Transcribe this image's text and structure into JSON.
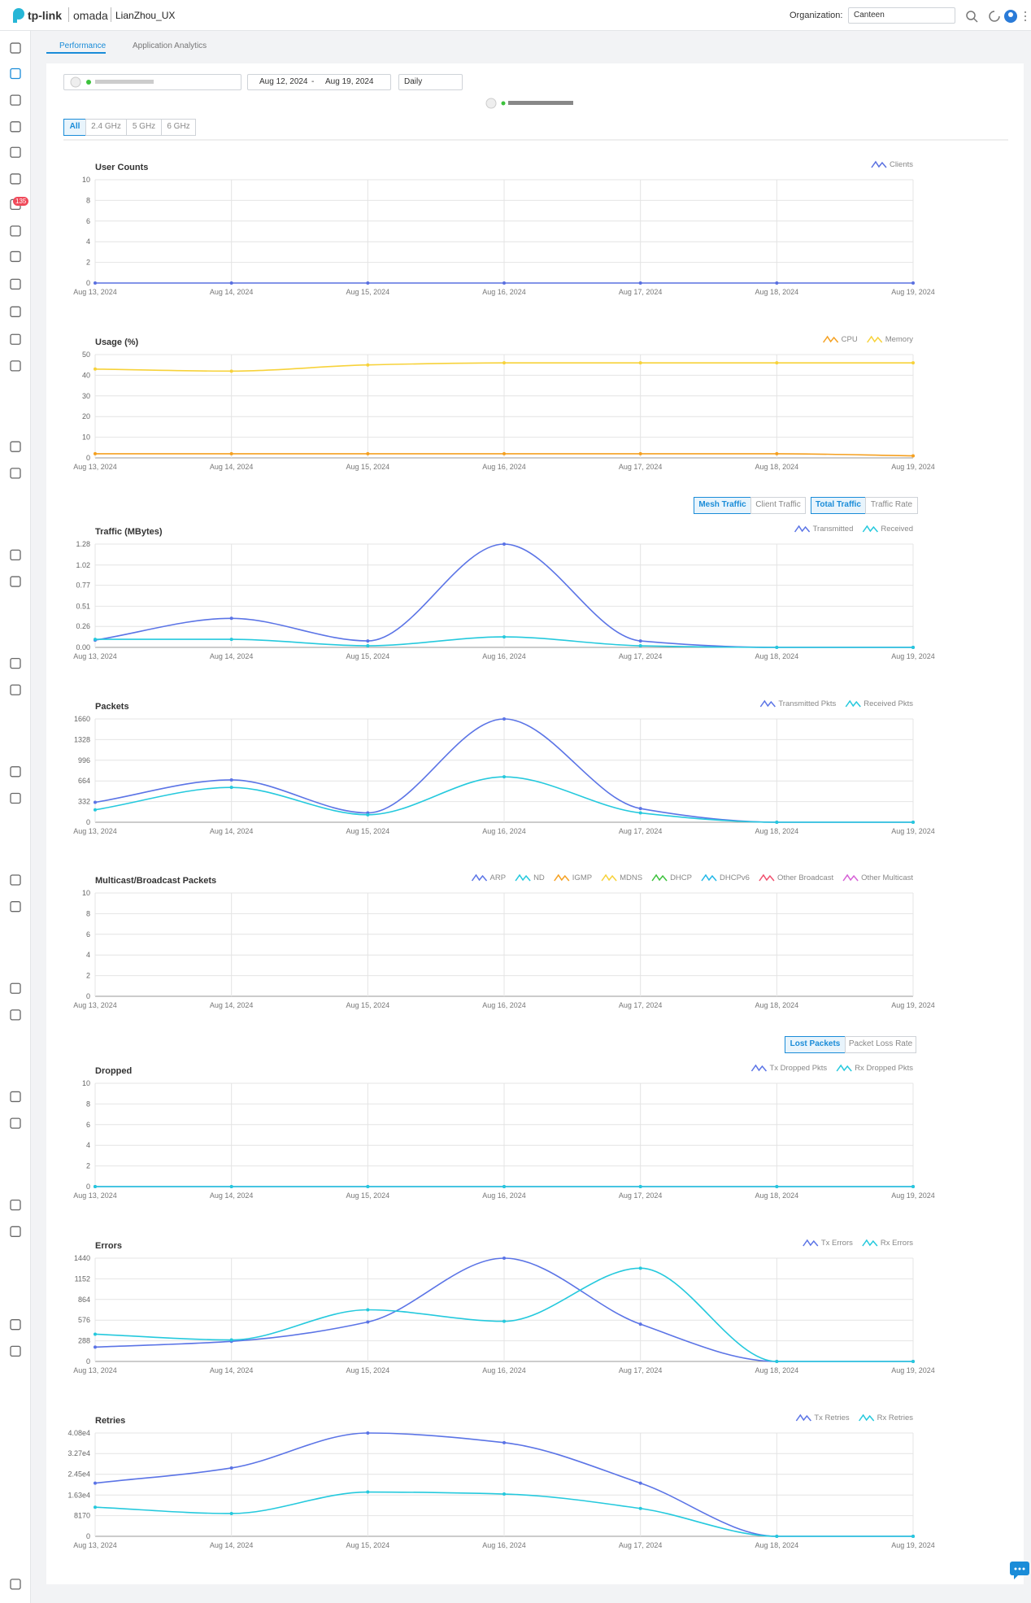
{
  "header": {
    "logo": "tp-link",
    "product": "omada",
    "site": "LianZhou_UX",
    "org_label": "Organization:",
    "org": "Canteen",
    "badge": "135"
  },
  "tabs": [
    "Performance",
    "Application Analytics"
  ],
  "filters": {
    "start": "Aug 12, 2024",
    "dash": "-",
    "end": "Aug 19, 2024",
    "interval": "Daily"
  },
  "bands": [
    "All",
    "2.4 GHz",
    "5 GHz",
    "6 GHz"
  ],
  "traffic_toggles": [
    "Mesh Traffic",
    "Client Traffic",
    "Total Traffic",
    "Traffic Rate"
  ],
  "loss_toggles": [
    "Lost Packets",
    "Packet Loss Rate"
  ],
  "chart_data": [
    {
      "type": "line",
      "title": "User Counts",
      "categories": [
        "Aug 13, 2024",
        "Aug 14, 2024",
        "Aug 15, 2024",
        "Aug 16, 2024",
        "Aug 17, 2024",
        "Aug 18, 2024",
        "Aug 19, 2024"
      ],
      "series": [
        {
          "name": "Clients",
          "color": "#5a70e0",
          "values": [
            0,
            0,
            0,
            0,
            0,
            0,
            0
          ]
        }
      ],
      "ylim": [
        0,
        10
      ],
      "yticks": [
        0,
        2,
        4,
        6,
        8,
        10
      ],
      "grid": true
    },
    {
      "type": "line",
      "title": "Usage (%)",
      "categories": [
        "Aug 13, 2024",
        "Aug 14, 2024",
        "Aug 15, 2024",
        "Aug 16, 2024",
        "Aug 17, 2024",
        "Aug 18, 2024",
        "Aug 19, 2024"
      ],
      "series": [
        {
          "name": "CPU",
          "color": "#f5a020",
          "values": [
            2,
            2,
            2,
            2,
            2,
            2,
            1
          ]
        },
        {
          "name": "Memory",
          "color": "#f7d23a",
          "values": [
            43,
            42,
            45,
            46,
            46,
            46,
            46
          ]
        }
      ],
      "ylim": [
        0,
        50
      ],
      "yticks": [
        0,
        10,
        20,
        30,
        40,
        50
      ],
      "grid": true
    },
    {
      "type": "line",
      "title": "Traffic (MBytes)",
      "categories": [
        "Aug 13, 2024",
        "Aug 14, 2024",
        "Aug 15, 2024",
        "Aug 16, 2024",
        "Aug 17, 2024",
        "Aug 18, 2024",
        "Aug 19, 2024"
      ],
      "series": [
        {
          "name": "Transmitted",
          "color": "#5b74e6",
          "values": [
            0.09,
            0.36,
            0.08,
            1.28,
            0.08,
            0,
            0
          ]
        },
        {
          "name": "Received",
          "color": "#25c9dd",
          "values": [
            0.1,
            0.1,
            0.02,
            0.13,
            0.02,
            0,
            0
          ]
        }
      ],
      "ylim": [
        0,
        1.28
      ],
      "yticks": [
        {
          "value": 0,
          "label": "0.00"
        },
        0.26,
        0.51,
        0.77,
        1.02,
        1.28
      ],
      "grid": true
    },
    {
      "type": "line",
      "title": "Packets",
      "categories": [
        "Aug 13, 2024",
        "Aug 14, 2024",
        "Aug 15, 2024",
        "Aug 16, 2024",
        "Aug 17, 2024",
        "Aug 18, 2024",
        "Aug 19, 2024"
      ],
      "series": [
        {
          "name": "Transmitted Pkts",
          "color": "#5b74e6",
          "values": [
            320,
            680,
            150,
            1660,
            220,
            0,
            0
          ]
        },
        {
          "name": "Received Pkts",
          "color": "#25c9dd",
          "values": [
            200,
            560,
            120,
            730,
            150,
            0,
            0
          ]
        }
      ],
      "ylim": [
        0,
        1660
      ],
      "yticks": [
        0,
        332,
        664,
        996,
        1328,
        1660
      ],
      "grid": true
    },
    {
      "type": "line",
      "title": "Multicast/Broadcast Packets",
      "categories": [
        "Aug 13, 2024",
        "Aug 14, 2024",
        "Aug 15, 2024",
        "Aug 16, 2024",
        "Aug 17, 2024",
        "Aug 18, 2024",
        "Aug 19, 2024"
      ],
      "series": [
        {
          "name": "ARP",
          "color": "#5b74e6",
          "values": [
            null,
            null,
            null,
            null,
            null,
            null,
            null
          ]
        },
        {
          "name": "ND",
          "color": "#25c9dd",
          "values": [
            null,
            null,
            null,
            null,
            null,
            null,
            null
          ]
        },
        {
          "name": "IGMP",
          "color": "#f5a020",
          "values": [
            null,
            null,
            null,
            null,
            null,
            null,
            null
          ]
        },
        {
          "name": "MDNS",
          "color": "#f7d23a",
          "values": [
            null,
            null,
            null,
            null,
            null,
            null,
            null
          ]
        },
        {
          "name": "DHCP",
          "color": "#3cc23c",
          "values": [
            null,
            null,
            null,
            null,
            null,
            null,
            null
          ]
        },
        {
          "name": "DHCPv6",
          "color": "#22b8e8",
          "values": [
            null,
            null,
            null,
            null,
            null,
            null,
            null
          ]
        },
        {
          "name": "Other Broadcast",
          "color": "#f0506e",
          "values": [
            null,
            null,
            null,
            null,
            null,
            null,
            null
          ]
        },
        {
          "name": "Other Multicast",
          "color": "#d660d6",
          "values": [
            null,
            null,
            null,
            null,
            null,
            null,
            null
          ]
        }
      ],
      "ylim": [
        0,
        10
      ],
      "yticks": [
        0,
        2,
        4,
        6,
        8,
        10
      ],
      "grid": true
    },
    {
      "type": "line",
      "title": "Dropped",
      "categories": [
        "Aug 13, 2024",
        "Aug 14, 2024",
        "Aug 15, 2024",
        "Aug 16, 2024",
        "Aug 17, 2024",
        "Aug 18, 2024",
        "Aug 19, 2024"
      ],
      "series": [
        {
          "name": "Tx Dropped Pkts",
          "color": "#5b74e6",
          "values": [
            0,
            0,
            0,
            0,
            0,
            0,
            0
          ]
        },
        {
          "name": "Rx Dropped Pkts",
          "color": "#25c9dd",
          "values": [
            0,
            0,
            0,
            0,
            0,
            0,
            0
          ]
        }
      ],
      "ylim": [
        0,
        10
      ],
      "yticks": [
        0,
        2,
        4,
        6,
        8,
        10
      ],
      "grid": true
    },
    {
      "type": "line",
      "title": "Errors",
      "categories": [
        "Aug 13, 2024",
        "Aug 14, 2024",
        "Aug 15, 2024",
        "Aug 16, 2024",
        "Aug 17, 2024",
        "Aug 18, 2024",
        "Aug 19, 2024"
      ],
      "series": [
        {
          "name": "Tx Errors",
          "color": "#5b74e6",
          "values": [
            200,
            280,
            550,
            1440,
            520,
            0,
            0
          ]
        },
        {
          "name": "Rx Errors",
          "color": "#25c9dd",
          "values": [
            380,
            300,
            720,
            560,
            1300,
            0,
            0
          ]
        }
      ],
      "ylim": [
        0,
        1440
      ],
      "yticks": [
        0,
        288,
        576,
        864,
        1152,
        1440
      ],
      "grid": true
    },
    {
      "type": "line",
      "title": "Retries",
      "categories": [
        "Aug 13, 2024",
        "Aug 14, 2024",
        "Aug 15, 2024",
        "Aug 16, 2024",
        "Aug 17, 2024",
        "Aug 18, 2024",
        "Aug 19, 2024"
      ],
      "series": [
        {
          "name": "Tx Retries",
          "color": "#5b74e6",
          "values": [
            21000,
            27000,
            40800,
            37000,
            21000,
            0,
            0
          ]
        },
        {
          "name": "Rx Retries",
          "color": "#25c9dd",
          "values": [
            11500,
            9000,
            17500,
            16700,
            11000,
            0,
            0
          ]
        }
      ],
      "ylim": [
        0,
        40800
      ],
      "yticks": [
        0,
        8170,
        {
          "value": 16300,
          "label": "1.63e4"
        },
        {
          "value": 24500,
          "label": "2.45e4"
        },
        {
          "value": 32700,
          "label": "3.27e4"
        },
        {
          "value": 40800,
          "label": "4.08e4"
        }
      ],
      "grid": true
    }
  ]
}
